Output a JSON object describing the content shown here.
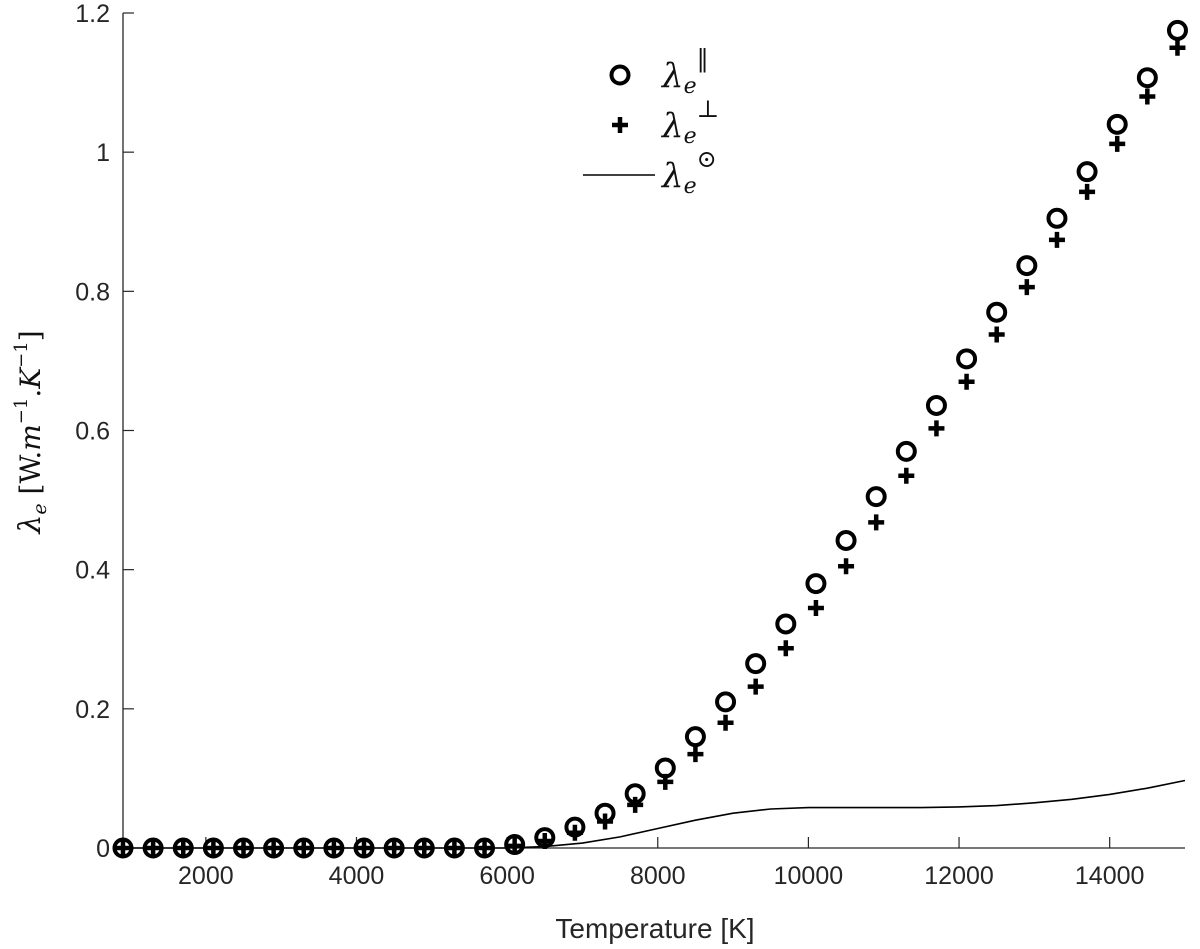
{
  "chart_data": {
    "type": "scatter",
    "xlabel": "Temperature [K]",
    "ylabel": {
      "symbol": "λ",
      "sub": "e",
      "unit_open": " [W.",
      "m": "m",
      "m_exp": "−1",
      "dot": ".",
      "K": "K",
      "K_exp": "−1",
      "unit_close": "]"
    },
    "xlim": [
      900,
      15000
    ],
    "ylim": [
      0,
      1.2
    ],
    "x_ticks": [
      2000,
      4000,
      6000,
      8000,
      10000,
      12000,
      14000
    ],
    "x_tick_labels": [
      "2000",
      "4000",
      "6000",
      "8000",
      "10000",
      "12000",
      "14000"
    ],
    "y_ticks": [
      0,
      0.2,
      0.4,
      0.6,
      0.8,
      1.0,
      1.2
    ],
    "y_tick_labels": [
      "0",
      "0.2",
      "0.4",
      "0.6",
      "0.8",
      "1",
      "1.2"
    ],
    "grid": false,
    "legend_position": "top-center",
    "series": [
      {
        "name": "λe‖",
        "legend": {
          "symbol": "λ",
          "sub": "e",
          "sup": "‖"
        },
        "marker": "circle",
        "x": [
          900,
          1300,
          1700,
          2100,
          2500,
          2900,
          3300,
          3700,
          4100,
          4500,
          4900,
          5300,
          5700,
          6100,
          6500,
          6900,
          7300,
          7700,
          8100,
          8500,
          8900,
          9300,
          9700,
          10100,
          10500,
          10900,
          11300,
          11700,
          12100,
          12500,
          12900,
          13300,
          13700,
          14100,
          14500,
          14900
        ],
        "y": [
          0,
          0,
          0,
          0,
          0,
          0,
          0,
          0,
          0,
          0,
          0,
          0,
          0,
          0.005,
          0.015,
          0.03,
          0.05,
          0.078,
          0.115,
          0.16,
          0.21,
          0.265,
          0.322,
          0.38,
          0.442,
          0.505,
          0.57,
          0.636,
          0.703,
          0.77,
          0.837,
          0.905,
          0.972,
          1.04,
          1.107,
          1.175
        ]
      },
      {
        "name": "λe⊥",
        "legend": {
          "symbol": "λ",
          "sub": "e",
          "sup": "⊥"
        },
        "marker": "plus",
        "x": [
          900,
          1300,
          1700,
          2100,
          2500,
          2900,
          3300,
          3700,
          4100,
          4500,
          4900,
          5300,
          5700,
          6100,
          6500,
          6900,
          7300,
          7700,
          8100,
          8500,
          8900,
          9300,
          9700,
          10100,
          10500,
          10900,
          11300,
          11700,
          12100,
          12500,
          12900,
          13300,
          13700,
          14100,
          14500,
          14900
        ],
        "y": [
          0,
          0,
          0,
          0,
          0,
          0,
          0,
          0,
          0,
          0,
          0,
          0,
          0,
          0.003,
          0.01,
          0.022,
          0.038,
          0.062,
          0.095,
          0.135,
          0.18,
          0.232,
          0.287,
          0.345,
          0.405,
          0.468,
          0.535,
          0.603,
          0.67,
          0.738,
          0.806,
          0.874,
          0.943,
          1.012,
          1.08,
          1.15
        ]
      },
      {
        "name": "λe⊙",
        "legend": {
          "symbol": "λ",
          "sub": "e",
          "sup": "⊙"
        },
        "marker": "line",
        "x": [
          900,
          6000,
          6500,
          7000,
          7500,
          8000,
          8500,
          9000,
          9500,
          10000,
          10500,
          11000,
          11500,
          12000,
          12500,
          13000,
          13500,
          14000,
          14500,
          15000
        ],
        "y": [
          0,
          0,
          0.002,
          0.007,
          0.016,
          0.028,
          0.04,
          0.05,
          0.056,
          0.058,
          0.058,
          0.058,
          0.058,
          0.059,
          0.061,
          0.065,
          0.07,
          0.077,
          0.086,
          0.097
        ]
      }
    ]
  }
}
